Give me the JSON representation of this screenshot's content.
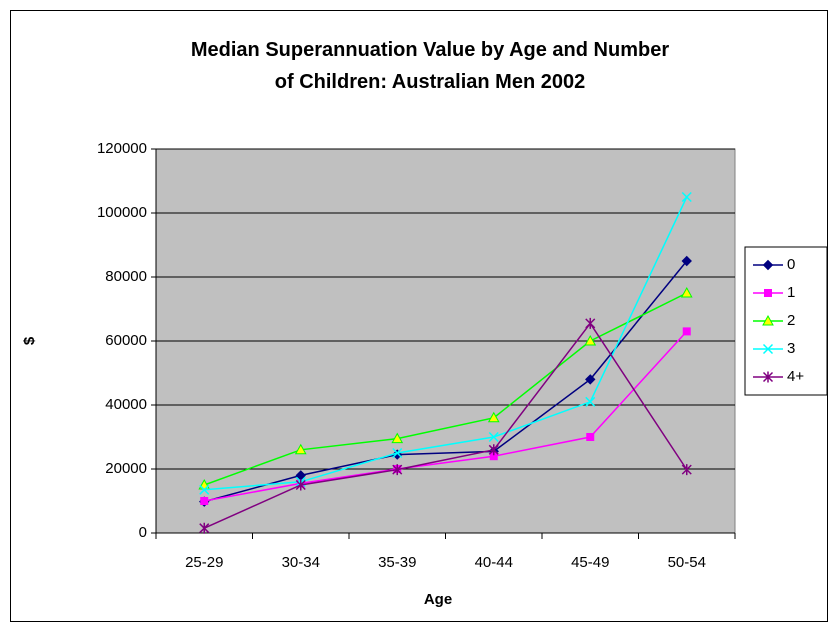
{
  "chart_data": {
    "type": "line",
    "title": "Median Superannuation Value by Age and Number of Children: Australian Men 2002",
    "x_label": "Age",
    "y_label": "$",
    "categories": [
      "25-29",
      "30-34",
      "35-39",
      "40-44",
      "45-49",
      "50-54"
    ],
    "series": [
      {
        "name": "0",
        "color": "#000080",
        "marker": "diamond",
        "values": [
          9800,
          18000,
          24500,
          25500,
          48000,
          85000
        ]
      },
      {
        "name": "1",
        "color": "#FF00FF",
        "marker": "square",
        "values": [
          10000,
          15500,
          20000,
          24000,
          30000,
          63000
        ]
      },
      {
        "name": "2",
        "color": "#00FF00",
        "marker": "triangle",
        "values": [
          15000,
          26000,
          29500,
          36000,
          60000,
          75000
        ]
      },
      {
        "name": "3",
        "color": "#00FFFF",
        "marker": "x",
        "values": [
          13500,
          16000,
          25000,
          30000,
          41000,
          105000
        ]
      },
      {
        "name": "4+",
        "color": "#800080",
        "marker": "star",
        "values": [
          1500,
          15000,
          19800,
          26000,
          65500,
          19800
        ]
      }
    ],
    "ylim": [
      0,
      120000
    ],
    "yticks": [
      0,
      20000,
      40000,
      60000,
      80000,
      100000,
      120000
    ],
    "grid": true,
    "legend": "right",
    "plot_background": "#C0C0C0"
  }
}
